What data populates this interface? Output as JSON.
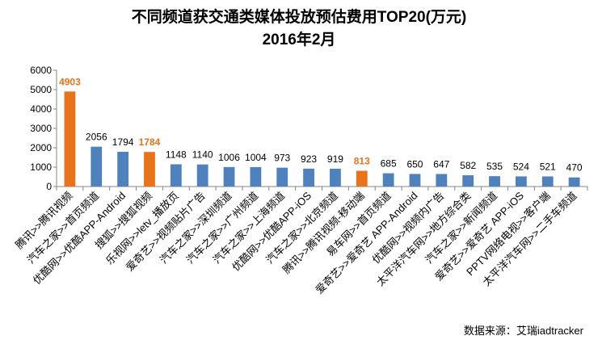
{
  "chart_data": {
    "type": "bar",
    "title": "不同频道获交通类媒体投放预估费用TOP20(万元)",
    "subtitle": "2016年2月",
    "categories": [
      "腾讯>>腾讯视频",
      "汽车之家>>首页频道",
      "优酷网>>优酷APP-Android",
      "搜狐>>搜狐视频",
      "乐视网>>letv_播放页",
      "爱奇艺>>视频贴片广告",
      "汽车之家>>深圳频道",
      "汽车之家>>广州频道",
      "汽车之家>>上海频道",
      "优酷网>>优酷APP-iOS",
      "汽车之家>>北京频道",
      "腾讯>>腾讯视频-移动端",
      "易车网>>首页频道",
      "爱奇艺>>爱奇艺 APP-Android",
      "优酷网>>视频内广告",
      "太平洋汽车网>>地方综合类",
      "汽车之家>>新闻频道",
      "爱奇艺>>爱奇艺 APP-iOS",
      "PPTV网络电视>>客户端",
      "太平洋汽车网>>二手车频道"
    ],
    "values": [
      4903,
      2056,
      1794,
      1784,
      1148,
      1140,
      1006,
      1004,
      973,
      923,
      919,
      813,
      685,
      650,
      647,
      582,
      535,
      524,
      521,
      470
    ],
    "highlighted": [
      0,
      3,
      11
    ],
    "colors": {
      "default": "#4F81BD",
      "highlight": "#E8731A"
    },
    "ylim": [
      0,
      6000
    ],
    "yticks": [
      0,
      1000,
      2000,
      3000,
      4000,
      5000,
      6000
    ],
    "grid": false,
    "legend": "none",
    "source": "数据来源：艾瑞iadtracker"
  }
}
